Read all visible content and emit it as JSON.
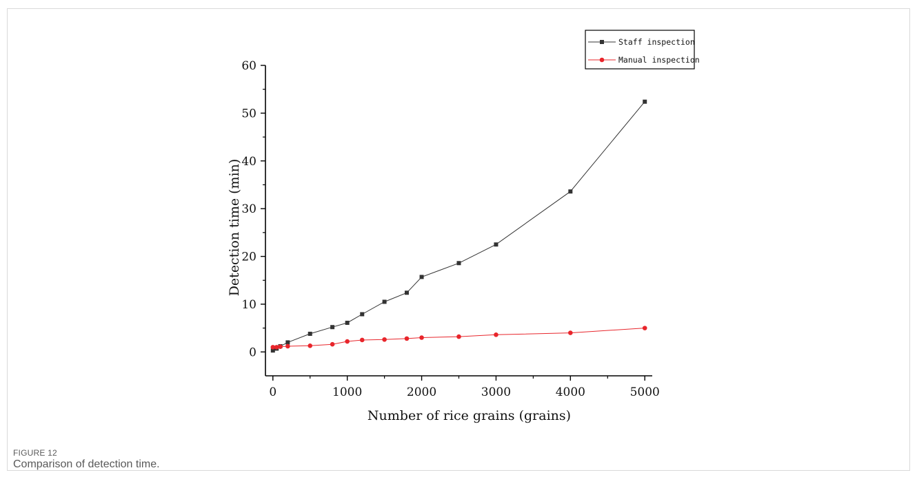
{
  "figure": {
    "label": "FIGURE 12",
    "caption": "Comparison of detection time."
  },
  "chart_data": {
    "type": "line",
    "xlabel": "Number of rice grains (grains)",
    "ylabel": "Detection time (min)",
    "xlim": [
      -100,
      5100
    ],
    "ylim": [
      -5,
      60
    ],
    "xticks": [
      0,
      1000,
      2000,
      3000,
      4000,
      5000
    ],
    "yticks": [
      0,
      10,
      20,
      30,
      40,
      50,
      60
    ],
    "legend_position": "top-right",
    "grid": false,
    "series": [
      {
        "name": "Staff inspection",
        "color": "#333333",
        "marker": "square",
        "x": [
          0,
          50,
          100,
          200,
          500,
          800,
          1000,
          1200,
          1500,
          1800,
          2000,
          2500,
          3000,
          4000,
          5000
        ],
        "y": [
          0.3,
          0.7,
          1.2,
          2.0,
          3.8,
          5.2,
          6.1,
          7.9,
          10.5,
          12.4,
          15.7,
          18.6,
          22.5,
          33.6,
          52.4
        ]
      },
      {
        "name": "Manual inspection",
        "color": "#e8252b",
        "marker": "circle",
        "x": [
          0,
          50,
          100,
          200,
          500,
          800,
          1000,
          1200,
          1500,
          1800,
          2000,
          2500,
          3000,
          4000,
          5000
        ],
        "y": [
          1.0,
          1.0,
          1.1,
          1.2,
          1.3,
          1.6,
          2.2,
          2.5,
          2.6,
          2.8,
          3.0,
          3.2,
          3.6,
          4.0,
          5.0
        ]
      }
    ]
  }
}
